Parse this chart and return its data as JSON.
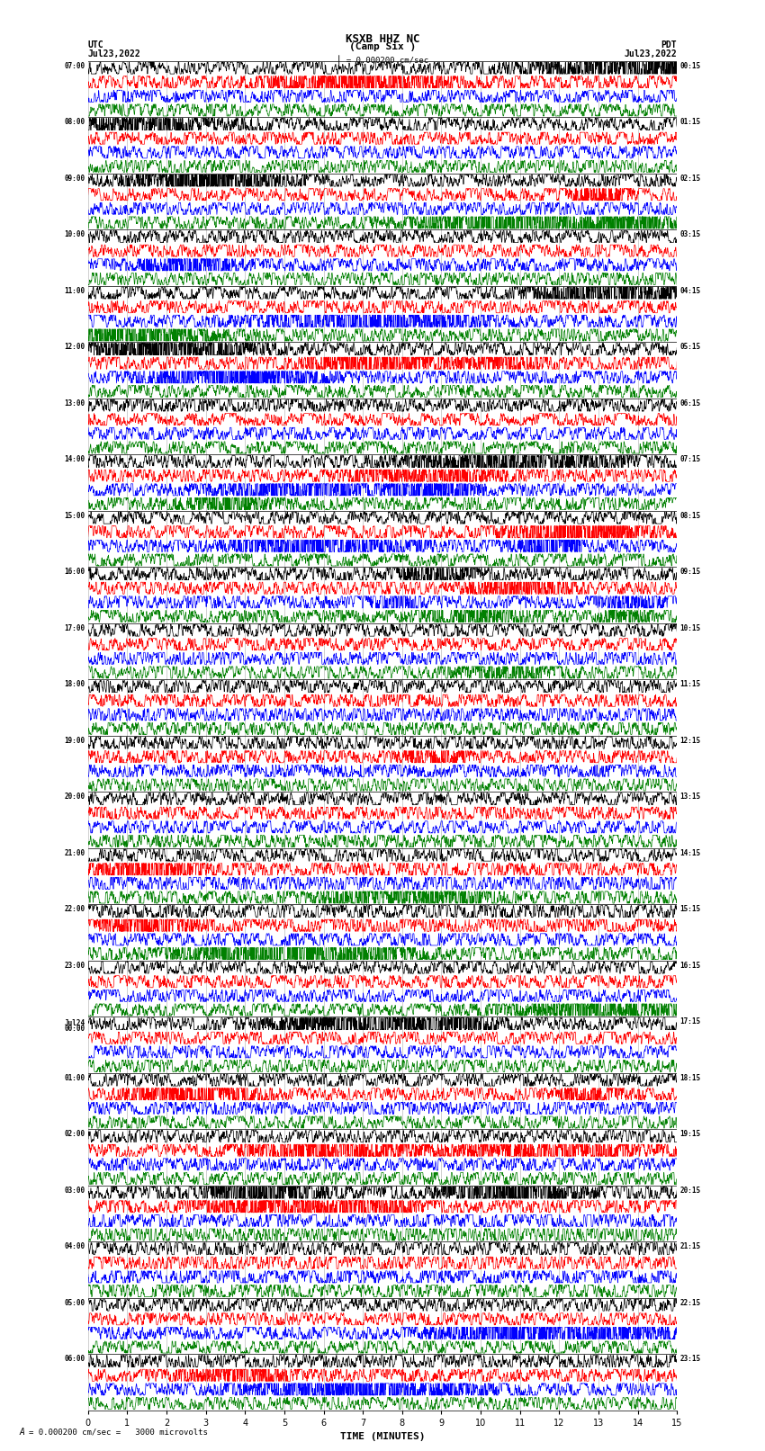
{
  "title_line1": "KSXB HHZ NC",
  "title_line2": "(Camp Six )",
  "scale_text": "= 0.000200 cm/sec",
  "scale_label": "A",
  "scale_note": "= 0.000200 cm/sec =   3000 microvolts",
  "left_label_top": "UTC",
  "left_label_date": "Jul23,2022",
  "right_label_top": "PDT",
  "right_label_date": "Jul23,2022",
  "xlabel": "TIME (MINUTES)",
  "xlim": [
    0,
    15
  ],
  "xticks": [
    0,
    1,
    2,
    3,
    4,
    5,
    6,
    7,
    8,
    9,
    10,
    11,
    12,
    13,
    14,
    15
  ],
  "trace_colors": [
    "black",
    "red",
    "blue",
    "green"
  ],
  "background_color": "white",
  "figsize": [
    8.5,
    16.13
  ],
  "dpi": 100,
  "utc_times": [
    "07:00",
    "08:00",
    "09:00",
    "10:00",
    "11:00",
    "12:00",
    "13:00",
    "14:00",
    "15:00",
    "16:00",
    "17:00",
    "18:00",
    "19:00",
    "20:00",
    "21:00",
    "22:00",
    "23:00",
    "Jul24\n00:00",
    "01:00",
    "02:00",
    "03:00",
    "04:00",
    "05:00",
    "06:00"
  ],
  "pdt_times": [
    "00:15",
    "01:15",
    "02:15",
    "03:15",
    "04:15",
    "05:15",
    "06:15",
    "07:15",
    "08:15",
    "09:15",
    "10:15",
    "11:15",
    "12:15",
    "13:15",
    "14:15",
    "15:15",
    "16:15",
    "17:15",
    "18:15",
    "19:15",
    "20:15",
    "21:15",
    "22:15",
    "23:15"
  ],
  "n_hours": 24,
  "traces_per_hour": 4,
  "grid_color": "#888888",
  "grid_linewidth": 0.4,
  "trace_linewidth": 0.5
}
